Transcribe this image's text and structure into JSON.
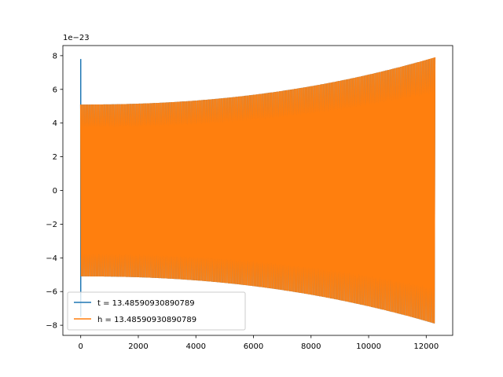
{
  "chart_data": {
    "type": "line",
    "title": "",
    "xlabel": "",
    "ylabel": "",
    "offset_text": "1e−23",
    "xlim": [
      -620,
      12920
    ],
    "ylim": [
      -8.6,
      8.6
    ],
    "xticks": [
      0,
      2000,
      4000,
      6000,
      8000,
      10000,
      12000
    ],
    "xtick_labels": [
      "0",
      "2000",
      "4000",
      "6000",
      "8000",
      "10000",
      "12000"
    ],
    "yticks": [
      -8,
      -6,
      -4,
      -2,
      0,
      2,
      4,
      6,
      8
    ],
    "ytick_labels": [
      "−8",
      "−6",
      "−4",
      "−2",
      "0",
      "2",
      "4",
      "6",
      "8"
    ],
    "grid": false,
    "legend_position": "lower-left",
    "series": [
      {
        "name": "t = 13.48590930890789",
        "color": "#1f77b4",
        "x_range": [
          0,
          12300
        ],
        "envelope_start": 5.1,
        "envelope_end": 7.9,
        "initial_spike": {
          "x": 0,
          "max": 7.8,
          "min": -7.5
        },
        "cycles": 520
      },
      {
        "name": "h = 13.48590930890789",
        "color": "#ff7f0e",
        "x_range": [
          0,
          12300
        ],
        "envelope_start": 5.1,
        "envelope_end": 7.9,
        "cycles": 520
      }
    ]
  }
}
